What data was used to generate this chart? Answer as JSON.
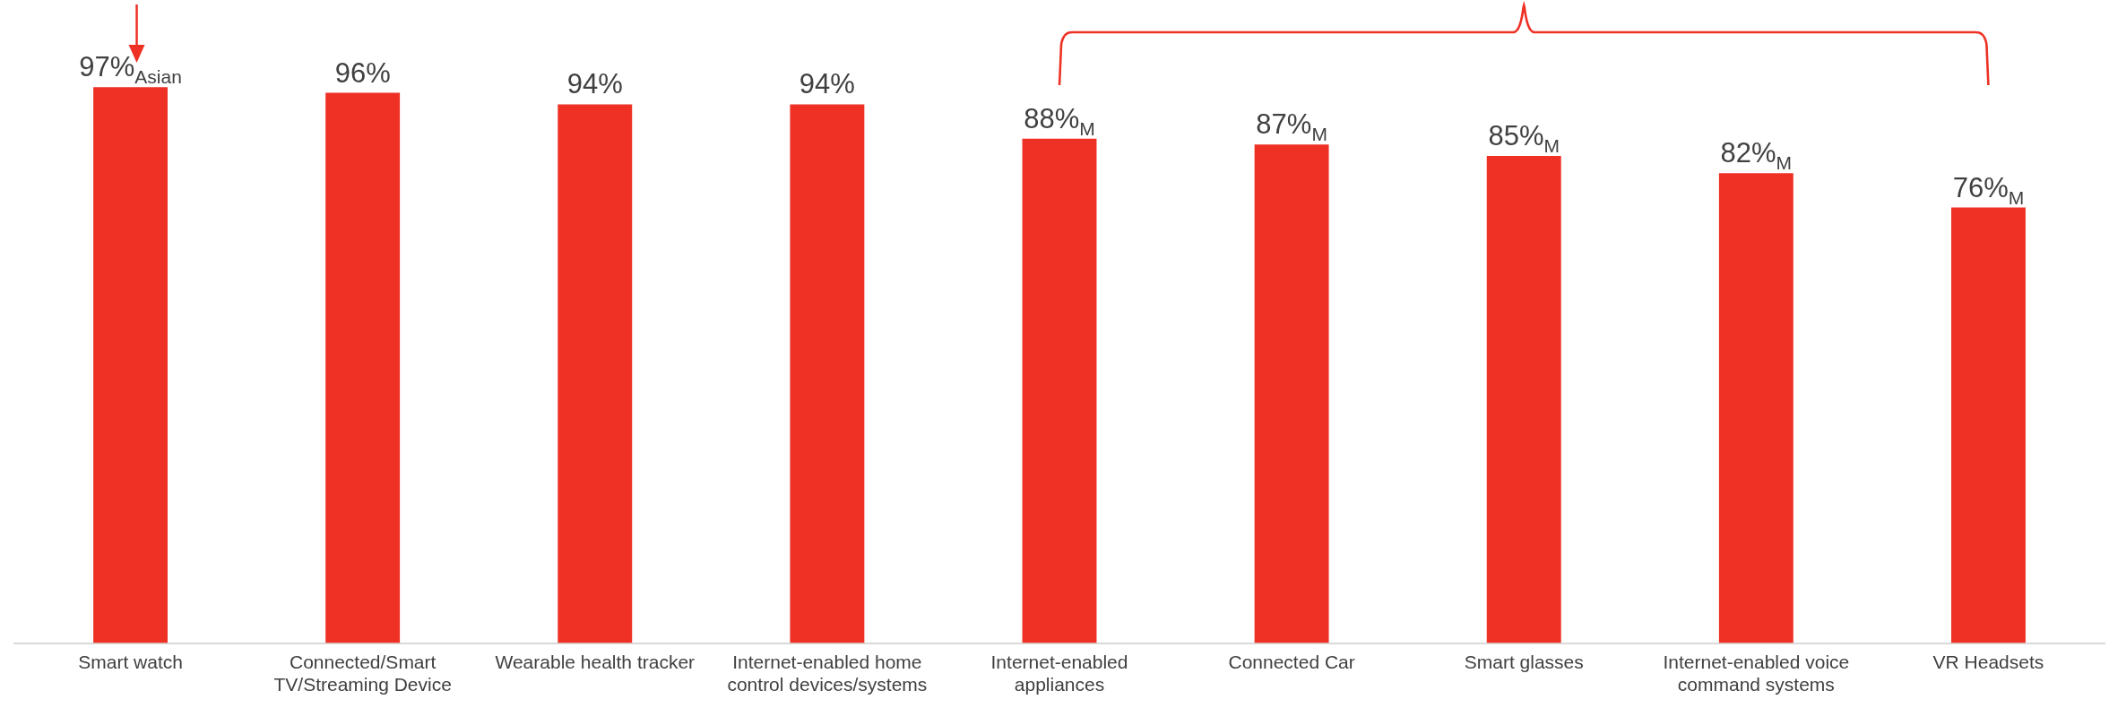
{
  "chart_data": {
    "type": "bar",
    "categories": [
      "Smart watch",
      "Connected/Smart TV/Streaming Device",
      "Wearable health tracker",
      "Internet-enabled home control devices/systems",
      "Internet-enabled appliances",
      "Connected Car",
      "Smart glasses",
      "Internet-enabled voice command systems",
      "VR Headsets"
    ],
    "values": [
      97,
      96,
      94,
      94,
      88,
      87,
      85,
      82,
      76
    ],
    "value_labels": [
      "97%$_{Asian}$",
      "96%",
      "94%",
      "94%",
      "88%$_{M}$",
      "87%$_{M}$",
      "85%$_{M}$",
      "82%$_{M}$",
      "76%$_{M}$"
    ],
    "color": "#ee3124"
  }
}
